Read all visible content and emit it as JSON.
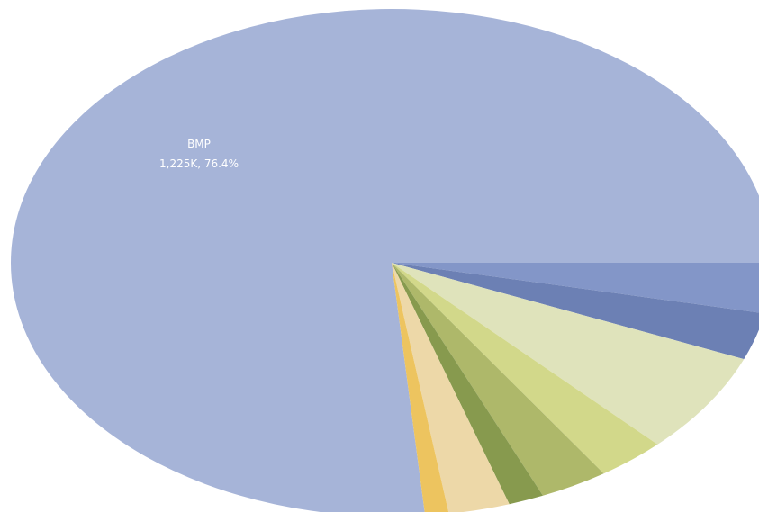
{
  "chart_data": {
    "type": "pie",
    "slices": [
      {
        "name": "BMP",
        "value_text": "1,225K",
        "percent": 76.4,
        "color": "#a6b4d8"
      },
      {
        "name": "",
        "value_text": "",
        "percent": 3.2,
        "color": "#8396c8"
      },
      {
        "name": "",
        "value_text": "",
        "percent": 3.0,
        "color": "#6c80b4"
      },
      {
        "name": "",
        "value_text": "",
        "percent": 6.5,
        "color": "#dfe3bb"
      },
      {
        "name": "",
        "value_text": "",
        "percent": 2.9,
        "color": "#d2d88a"
      },
      {
        "name": "",
        "value_text": "",
        "percent": 2.9,
        "color": "#aeb86a"
      },
      {
        "name": "",
        "value_text": "",
        "percent": 1.5,
        "color": "#879a4e"
      },
      {
        "name": "",
        "value_text": "",
        "percent": 2.6,
        "color": "#edd8a8"
      },
      {
        "name": "",
        "value_text": "",
        "percent": 1.0,
        "color": "#edc45f"
      }
    ],
    "visible_labels": [
      {
        "line1": "BMP",
        "line2": "1,225K,  76.4%"
      }
    ]
  }
}
